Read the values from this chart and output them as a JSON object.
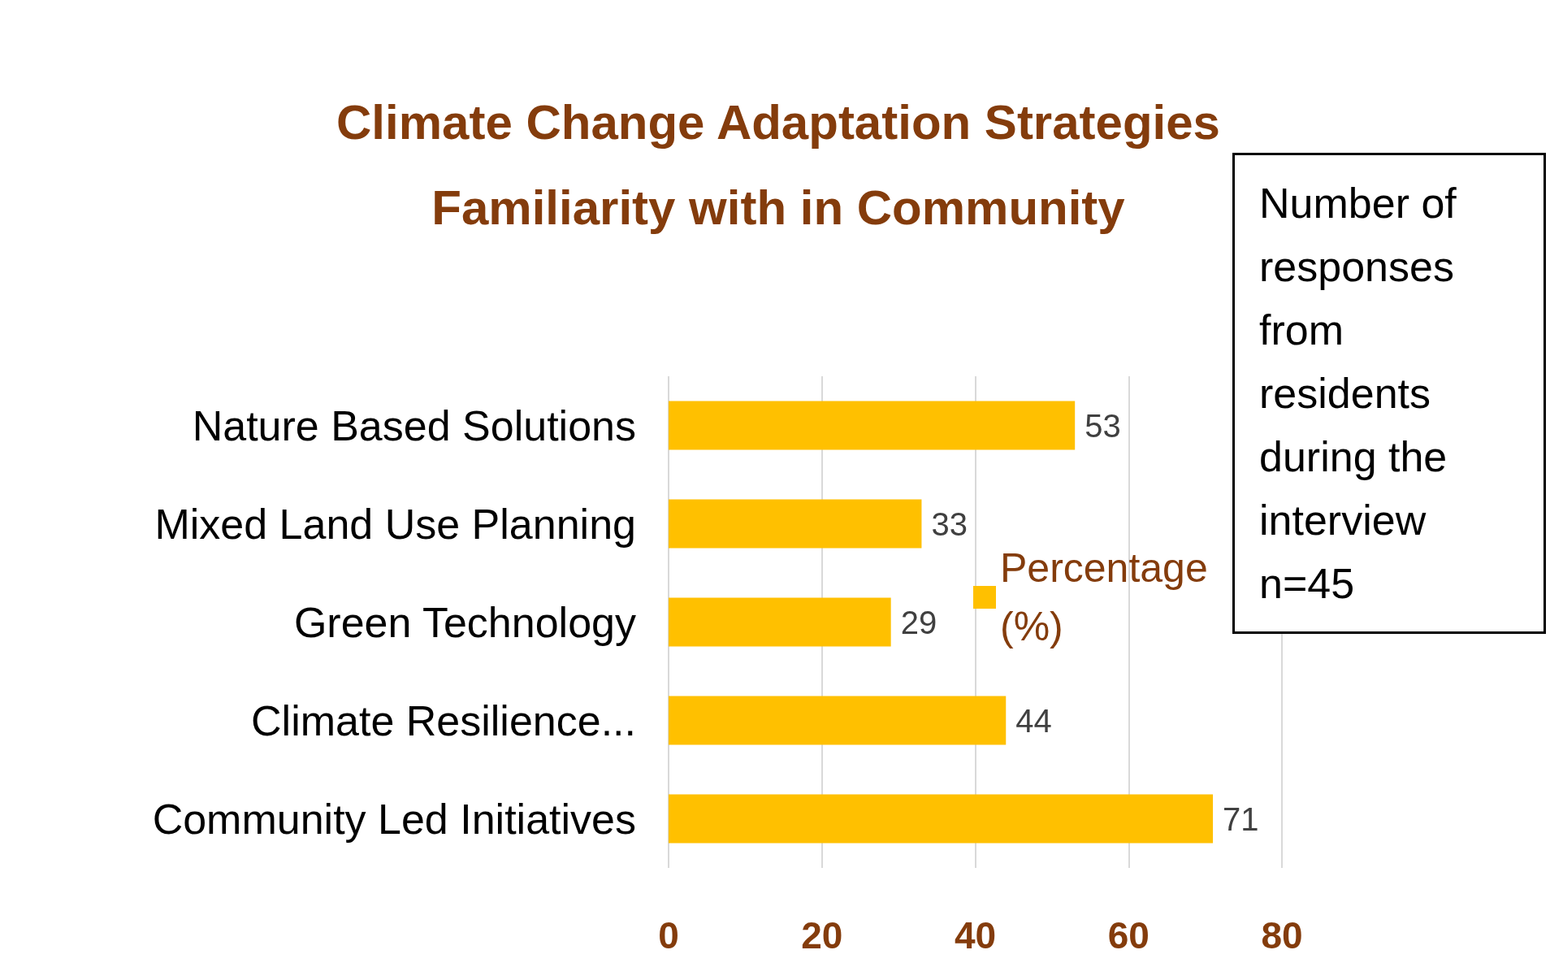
{
  "chart_data": {
    "type": "bar",
    "orientation": "horizontal",
    "title": "Climate Change Adaptation Strategies\nFamiliarity with in Community",
    "categories": [
      "Nature Based Solutions",
      "Mixed Land Use Planning",
      "Green Technology",
      "Climate Resilience...",
      "Community Led Initiatives"
    ],
    "series": [
      {
        "name": "Percentage (%)",
        "color": "#ffc000",
        "values": [
          53,
          33,
          29,
          44,
          71
        ]
      }
    ],
    "xlim": [
      0,
      80
    ],
    "xticks": [
      0,
      20,
      40,
      60,
      80
    ],
    "grid": "x",
    "legend": "right",
    "data_labels": true,
    "annotations": [
      "Number of responses from residents during the interview n=45"
    ]
  }
}
